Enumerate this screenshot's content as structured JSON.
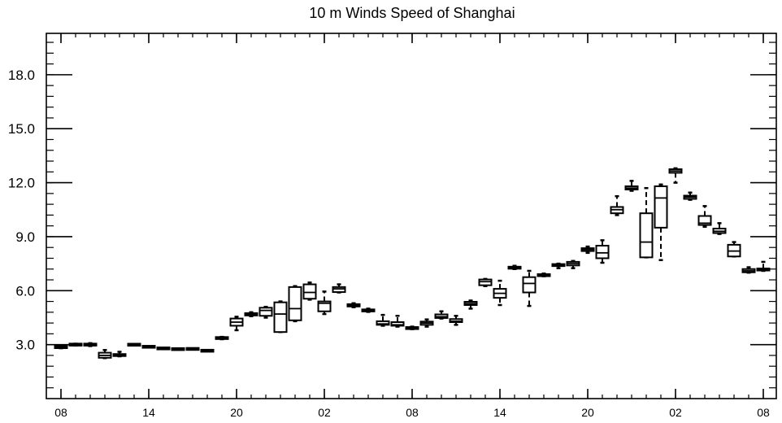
{
  "chart_data": {
    "type": "box",
    "title": "10 m Winds Speed of Shanghai",
    "xlabel": "",
    "ylabel": "",
    "ylim": [
      0.0,
      20.3
    ],
    "xlim": [
      0,
      48.5
    ],
    "y_ticks": [
      3.0,
      6.0,
      9.0,
      12.0,
      15.0,
      18.0
    ],
    "y_tick_labels": [
      "3.0",
      "6.0",
      "9.0",
      "12.0",
      "15.0",
      "18.0"
    ],
    "x_ticks": [
      0,
      6,
      12,
      18,
      24,
      30,
      36,
      42,
      48
    ],
    "x_tick_labels": [
      "08",
      "14",
      "20",
      "02",
      "08",
      "14",
      "20",
      "02",
      "08"
    ],
    "grid": false,
    "boxes": [
      {
        "x": 0,
        "min": 2.8,
        "q1": 2.82,
        "median": 2.86,
        "q3": 2.9,
        "max": 2.95
      },
      {
        "x": 1,
        "min": 2.95,
        "q1": 2.98,
        "median": 3.0,
        "q3": 3.02,
        "max": 3.05
      },
      {
        "x": 2,
        "min": 2.92,
        "q1": 2.95,
        "median": 3.0,
        "q3": 3.05,
        "max": 3.08
      },
      {
        "x": 3,
        "min": 2.25,
        "q1": 2.27,
        "median": 2.4,
        "q3": 2.55,
        "max": 2.7
      },
      {
        "x": 4,
        "min": 2.35,
        "q1": 2.38,
        "median": 2.42,
        "q3": 2.46,
        "max": 2.6
      },
      {
        "x": 5,
        "min": 2.95,
        "q1": 2.97,
        "median": 3.0,
        "q3": 3.02,
        "max": 3.04
      },
      {
        "x": 6,
        "min": 2.86,
        "q1": 2.87,
        "median": 2.88,
        "q3": 2.89,
        "max": 2.9
      },
      {
        "x": 7,
        "min": 2.77,
        "q1": 2.78,
        "median": 2.79,
        "q3": 2.8,
        "max": 2.81
      },
      {
        "x": 8,
        "min": 2.73,
        "q1": 2.74,
        "median": 2.75,
        "q3": 2.76,
        "max": 2.77
      },
      {
        "x": 9,
        "min": 2.74,
        "q1": 2.75,
        "median": 2.76,
        "q3": 2.77,
        "max": 2.78
      },
      {
        "x": 10,
        "min": 2.64,
        "q1": 2.65,
        "median": 2.66,
        "q3": 2.67,
        "max": 2.68
      },
      {
        "x": 11,
        "min": 3.3,
        "q1": 3.33,
        "median": 3.36,
        "q3": 3.4,
        "max": 3.43
      },
      {
        "x": 12,
        "min": 3.8,
        "q1": 4.05,
        "median": 4.25,
        "q3": 4.45,
        "max": 4.55
      },
      {
        "x": 13,
        "min": 4.58,
        "q1": 4.62,
        "median": 4.68,
        "q3": 4.75,
        "max": 4.8
      },
      {
        "x": 14,
        "min": 4.5,
        "q1": 4.6,
        "median": 4.9,
        "q3": 5.05,
        "max": 5.1
      },
      {
        "x": 15,
        "min": 3.7,
        "q1": 3.7,
        "median": 4.7,
        "q3": 5.35,
        "max": 5.4
      },
      {
        "x": 16,
        "min": 4.3,
        "q1": 4.35,
        "median": 5.0,
        "q3": 6.2,
        "max": 6.25
      },
      {
        "x": 17,
        "min": 5.5,
        "q1": 5.55,
        "median": 5.9,
        "q3": 6.35,
        "max": 6.45
      },
      {
        "x": 18,
        "min": 4.7,
        "q1": 4.85,
        "median": 5.3,
        "q3": 5.4,
        "max": 5.95
      },
      {
        "x": 19,
        "min": 5.9,
        "q1": 5.92,
        "median": 6.1,
        "q3": 6.2,
        "max": 6.35
      },
      {
        "x": 20,
        "min": 5.08,
        "q1": 5.12,
        "median": 5.18,
        "q3": 5.25,
        "max": 5.3
      },
      {
        "x": 21,
        "min": 4.82,
        "q1": 4.86,
        "median": 4.9,
        "q3": 4.94,
        "max": 5.0
      },
      {
        "x": 22,
        "min": 4.05,
        "q1": 4.1,
        "median": 4.15,
        "q3": 4.3,
        "max": 4.65
      },
      {
        "x": 23,
        "min": 4.0,
        "q1": 4.05,
        "median": 4.1,
        "q3": 4.25,
        "max": 4.6
      },
      {
        "x": 24,
        "min": 3.86,
        "q1": 3.88,
        "median": 3.92,
        "q3": 3.96,
        "max": 4.0
      },
      {
        "x": 25,
        "min": 4.0,
        "q1": 4.1,
        "median": 4.2,
        "q3": 4.28,
        "max": 4.4
      },
      {
        "x": 26,
        "min": 4.45,
        "q1": 4.48,
        "median": 4.55,
        "q3": 4.68,
        "max": 4.85
      },
      {
        "x": 27,
        "min": 4.1,
        "q1": 4.25,
        "median": 4.3,
        "q3": 4.42,
        "max": 4.6
      },
      {
        "x": 28,
        "min": 5.0,
        "q1": 5.2,
        "median": 5.28,
        "q3": 5.38,
        "max": 5.45
      },
      {
        "x": 29,
        "min": 6.25,
        "q1": 6.3,
        "median": 6.5,
        "q3": 6.62,
        "max": 6.65
      },
      {
        "x": 30,
        "min": 5.2,
        "q1": 5.6,
        "median": 5.85,
        "q3": 6.1,
        "max": 6.55
      },
      {
        "x": 31,
        "min": 7.2,
        "q1": 7.22,
        "median": 7.28,
        "q3": 7.33,
        "max": 7.38
      },
      {
        "x": 32,
        "min": 5.15,
        "q1": 5.9,
        "median": 6.4,
        "q3": 6.75,
        "max": 7.1
      },
      {
        "x": 33,
        "min": 6.8,
        "q1": 6.82,
        "median": 6.86,
        "q3": 6.9,
        "max": 6.95
      },
      {
        "x": 34,
        "min": 7.25,
        "q1": 7.38,
        "median": 7.42,
        "q3": 7.46,
        "max": 7.5
      },
      {
        "x": 35,
        "min": 7.25,
        "q1": 7.4,
        "median": 7.5,
        "q3": 7.6,
        "max": 7.65
      },
      {
        "x": 36,
        "min": 8.1,
        "q1": 8.2,
        "median": 8.28,
        "q3": 8.36,
        "max": 8.45
      },
      {
        "x": 37,
        "min": 7.55,
        "q1": 7.8,
        "median": 8.1,
        "q3": 8.5,
        "max": 8.8
      },
      {
        "x": 38,
        "min": 10.2,
        "q1": 10.3,
        "median": 10.5,
        "q3": 10.65,
        "max": 11.25
      },
      {
        "x": 39,
        "min": 11.55,
        "q1": 11.62,
        "median": 11.7,
        "q3": 11.8,
        "max": 12.1
      },
      {
        "x": 40,
        "min": 7.85,
        "q1": 7.85,
        "median": 8.7,
        "q3": 10.3,
        "max": 11.7
      },
      {
        "x": 41,
        "min": 7.7,
        "q1": 9.5,
        "median": 11.15,
        "q3": 11.8,
        "max": 11.9
      },
      {
        "x": 42,
        "min": 12.0,
        "q1": 12.55,
        "median": 12.65,
        "q3": 12.75,
        "max": 12.8
      },
      {
        "x": 43,
        "min": 11.05,
        "q1": 11.1,
        "median": 11.2,
        "q3": 11.28,
        "max": 11.45
      },
      {
        "x": 44,
        "min": 9.55,
        "q1": 9.65,
        "median": 9.75,
        "q3": 10.15,
        "max": 10.7
      },
      {
        "x": 45,
        "min": 9.15,
        "q1": 9.2,
        "median": 9.3,
        "q3": 9.45,
        "max": 9.75
      },
      {
        "x": 46,
        "min": 7.9,
        "q1": 7.9,
        "median": 8.2,
        "q3": 8.55,
        "max": 8.7
      },
      {
        "x": 47,
        "min": 7.0,
        "q1": 7.02,
        "median": 7.1,
        "q3": 7.2,
        "max": 7.3
      },
      {
        "x": 48,
        "min": 7.1,
        "q1": 7.13,
        "median": 7.18,
        "q3": 7.22,
        "max": 7.6
      }
    ]
  }
}
